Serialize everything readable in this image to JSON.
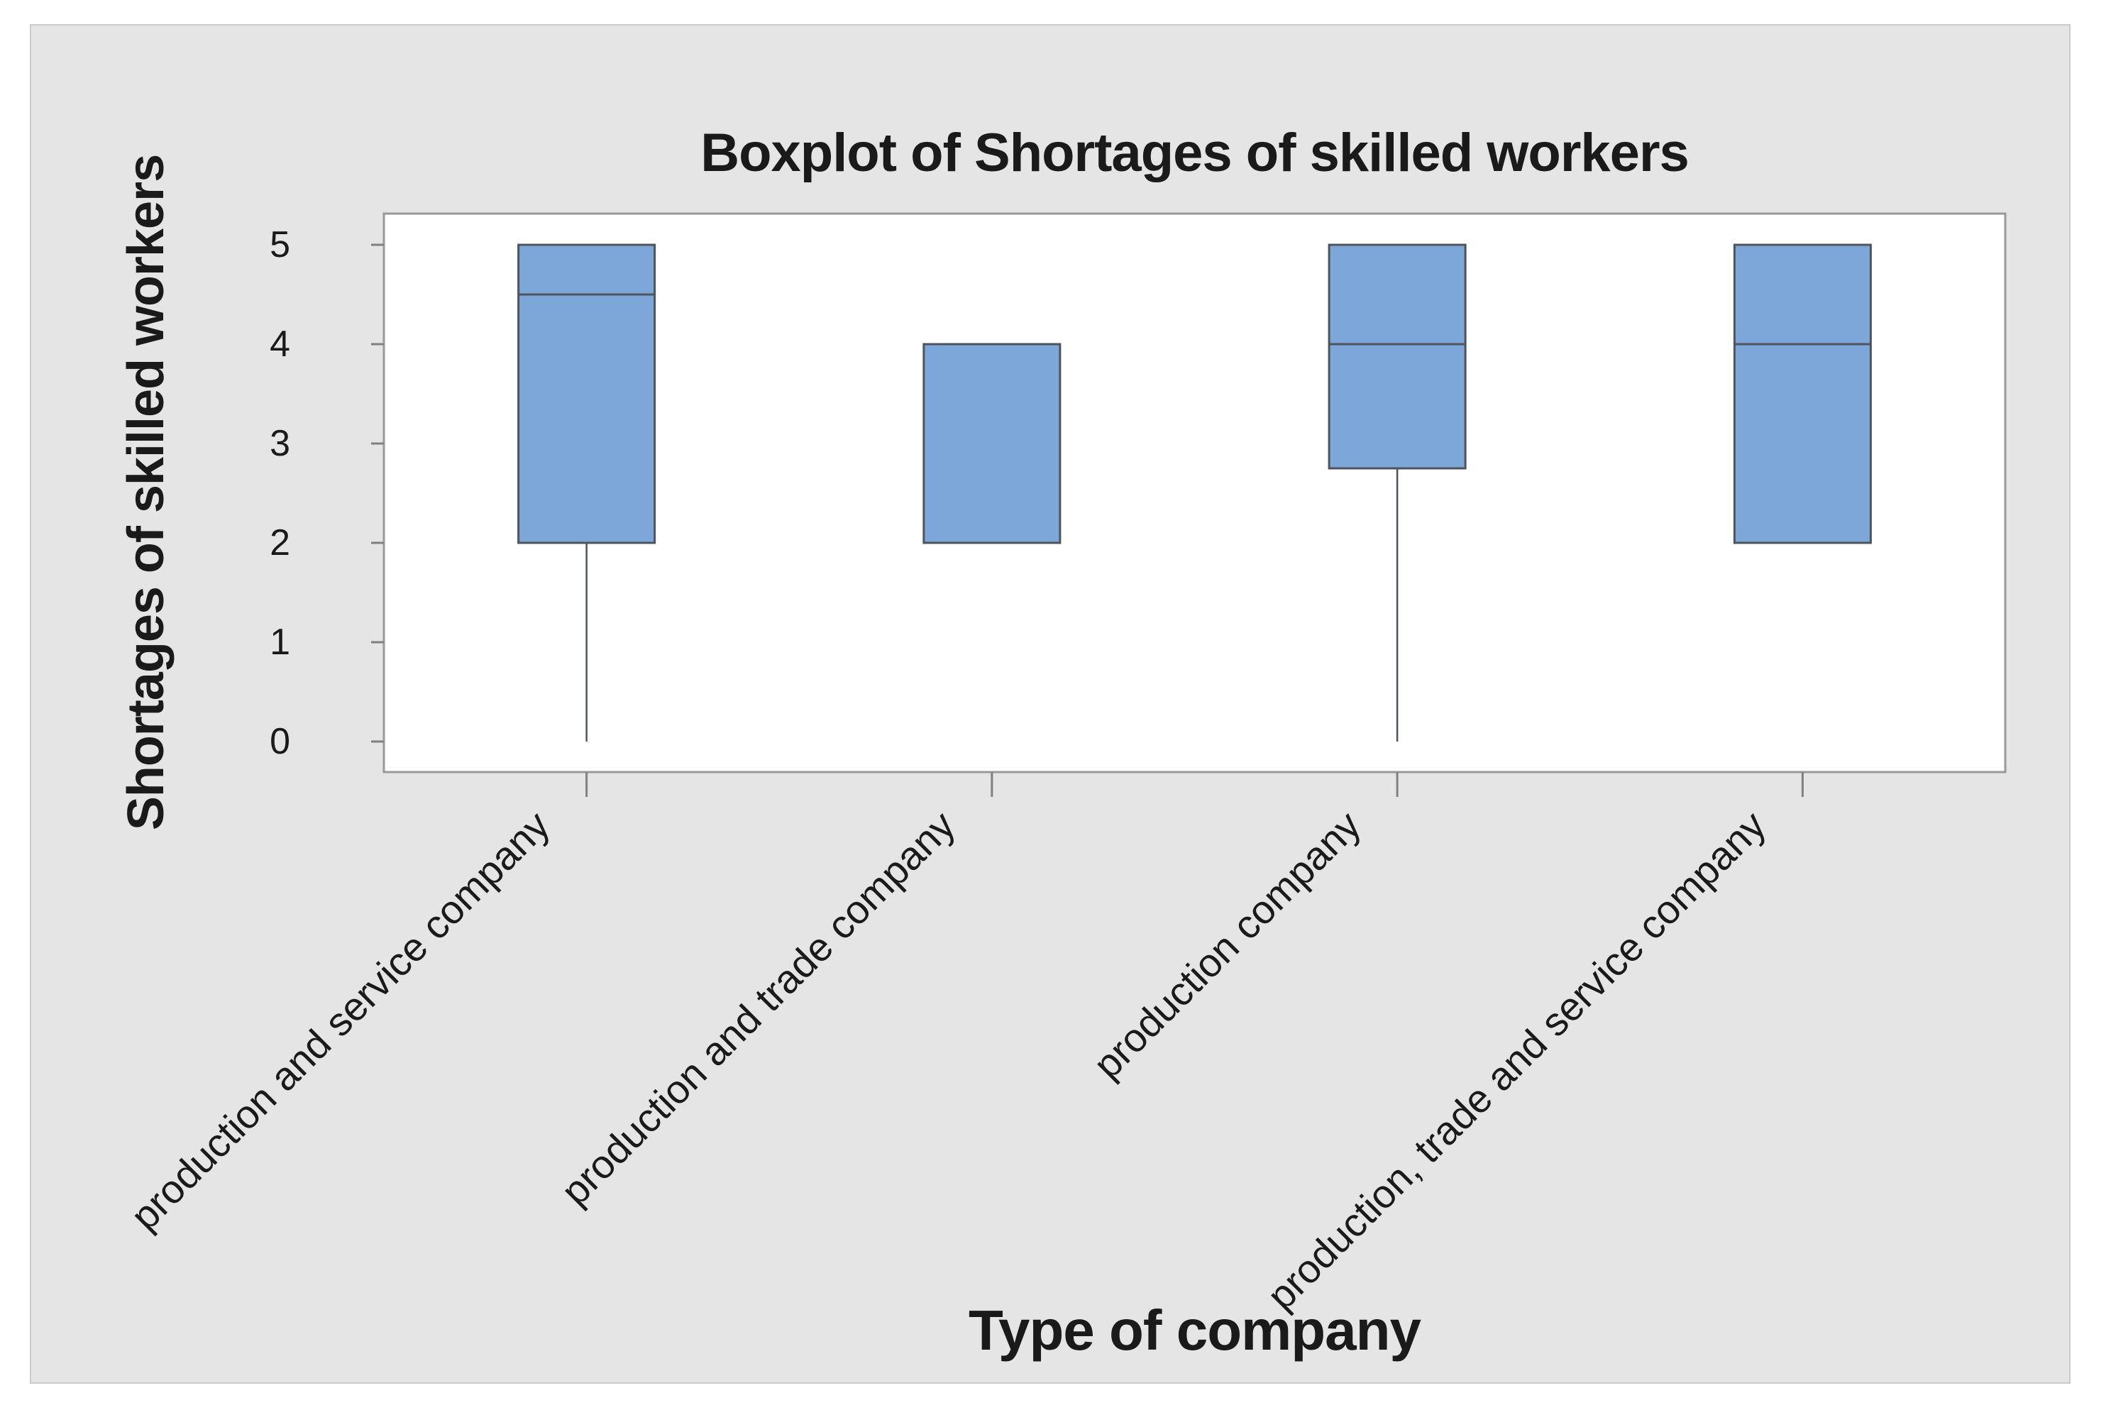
{
  "chart_data": {
    "type": "boxplot",
    "title": "Boxplot of Shortages of skilled workers",
    "xlabel": "Type of company",
    "ylabel": "Shortages of skilled workers",
    "y_ticks": [
      0,
      1,
      2,
      3,
      4,
      5
    ],
    "ylim": [
      -0.31,
      5.31
    ],
    "grid": false,
    "legend": false,
    "categories": [
      "production and service company",
      "production and trade company",
      "production company",
      "production, trade and service company"
    ],
    "boxes": [
      {
        "category": "production and service company",
        "whisker_low": 0,
        "q1": 2,
        "median": 4.5,
        "q3": 5,
        "whisker_high": 5
      },
      {
        "category": "production and trade company",
        "whisker_low": 2,
        "q1": 2,
        "median": null,
        "q3": 4,
        "whisker_high": 4
      },
      {
        "category": "production company",
        "whisker_low": 0,
        "q1": 2.75,
        "median": 4,
        "q3": 5,
        "whisker_high": 5
      },
      {
        "category": "production, trade and service company",
        "whisker_low": 2,
        "q1": 2,
        "median": 4,
        "q3": 5,
        "whisker_high": 5
      }
    ],
    "colors": {
      "box_fill": "#7da7d8",
      "box_border": "#4e545c",
      "whisker": "#4e545c",
      "frame": "#999999",
      "tick": "#808080",
      "canvas_bg": "#e5e5e5",
      "plot_bg": "#ffffff",
      "text": "#1a1a1a"
    }
  }
}
